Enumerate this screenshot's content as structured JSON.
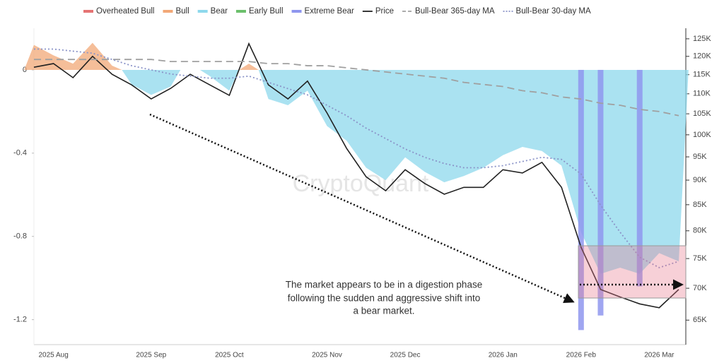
{
  "chart_data": {
    "type": "area",
    "categories": [
      null,
      "2025 Aug",
      null,
      null,
      null,
      null,
      "2025 Sep",
      null,
      null,
      null,
      "2025 Oct",
      null,
      null,
      null,
      null,
      "2025 Nov",
      null,
      null,
      null,
      "2025 Dec",
      null,
      null,
      null,
      null,
      "2026 Jan",
      null,
      null,
      null,
      "2026 Feb",
      null,
      null,
      null,
      "2026 Mar",
      null
    ],
    "series": [
      {
        "name": "Overheated Bull",
        "color": "#e57373",
        "mark": "area",
        "values": [
          null,
          null,
          null,
          null,
          null,
          null,
          null,
          null,
          null,
          null,
          null,
          null,
          null,
          null,
          null,
          null,
          null,
          null,
          null,
          null,
          null,
          null,
          null,
          null,
          null,
          null,
          null,
          null,
          null,
          null,
          null,
          null,
          null,
          null
        ]
      },
      {
        "name": "Bull",
        "color": "#f2a877",
        "mark": "area",
        "values": [
          0.12,
          0.07,
          0.03,
          0.13,
          0.02,
          null,
          null,
          null,
          0,
          null,
          null,
          0.03,
          null,
          null,
          null,
          null,
          null,
          null,
          null,
          null,
          null,
          null,
          null,
          null,
          null,
          null,
          null,
          null,
          null,
          null,
          null,
          null,
          null,
          null
        ]
      },
      {
        "name": "Bear",
        "color": "#8ed8ec",
        "mark": "area",
        "values": [
          null,
          null,
          null,
          null,
          null,
          -0.07,
          -0.12,
          -0.08,
          null,
          -0.03,
          -0.1,
          null,
          -0.14,
          -0.17,
          -0.1,
          -0.27,
          -0.34,
          -0.47,
          -0.53,
          -0.42,
          -0.49,
          -0.54,
          -0.51,
          -0.47,
          -0.41,
          -0.37,
          -0.39,
          -0.46,
          -0.78,
          -0.98,
          -0.95,
          -0.98,
          -0.88,
          -0.92
        ]
      },
      {
        "name": "Early Bull",
        "color": "#6cc06c",
        "mark": "area",
        "values": [
          null,
          null,
          null,
          null,
          null,
          null,
          null,
          null,
          null,
          null,
          null,
          null,
          null,
          null,
          null,
          null,
          null,
          null,
          null,
          null,
          null,
          null,
          null,
          null,
          null,
          null,
          null,
          null,
          null,
          null,
          null,
          null,
          null,
          null
        ]
      },
      {
        "name": "Extreme Bear",
        "color": "#8f96ee",
        "mark": "band",
        "values": [
          null,
          null,
          null,
          null,
          null,
          null,
          null,
          null,
          null,
          null,
          null,
          null,
          null,
          null,
          null,
          null,
          null,
          null,
          null,
          null,
          null,
          null,
          null,
          null,
          null,
          null,
          null,
          null,
          -1.25,
          -1.18,
          null,
          -1.04,
          null,
          null
        ]
      },
      {
        "name": "Price",
        "color": "#222222",
        "mark": "line",
        "axis": "y2",
        "values": [
          117000,
          118000,
          114200,
          120000,
          115100,
          112300,
          108700,
          111400,
          115100,
          112300,
          109600,
          123600,
          112300,
          108700,
          113300,
          105200,
          96900,
          90700,
          87800,
          92200,
          89300,
          87100,
          88500,
          88500,
          92200,
          91500,
          93800,
          88500,
          77000,
          69800,
          68600,
          67500,
          66900,
          69800
        ]
      },
      {
        "name": "Bull-Bear 365-day MA",
        "color": "#a0a0a0",
        "mark": "line",
        "dash": "dashed",
        "values": [
          0.05,
          0.05,
          0.05,
          0.05,
          0.05,
          0.05,
          0.05,
          0.04,
          0.04,
          0.04,
          0.04,
          0.04,
          0.03,
          0.03,
          0.02,
          0.02,
          0.01,
          0,
          -0.01,
          -0.02,
          -0.03,
          -0.04,
          -0.06,
          -0.07,
          -0.08,
          -0.1,
          -0.11,
          -0.13,
          -0.14,
          -0.16,
          -0.17,
          -0.19,
          -0.2,
          -0.22
        ]
      },
      {
        "name": "Bull-Bear 30-day MA",
        "color": "#8a93c8",
        "mark": "line",
        "dash": "dotted",
        "values": [
          0.1,
          0.1,
          0.09,
          0.08,
          0.05,
          0.02,
          0,
          -0.02,
          -0.03,
          -0.04,
          -0.04,
          -0.03,
          -0.06,
          -0.09,
          -0.12,
          -0.17,
          -0.22,
          -0.28,
          -0.33,
          -0.38,
          -0.42,
          -0.45,
          -0.47,
          -0.47,
          -0.46,
          -0.44,
          -0.42,
          -0.43,
          -0.5,
          -0.65,
          -0.78,
          -0.9,
          -0.95,
          -0.92
        ]
      }
    ],
    "ylim": [
      0.2,
      -1.32
    ],
    "yticks": [
      0,
      -0.4,
      -0.8,
      -1.2
    ],
    "grid": false,
    "y2lim": [
      61400,
      128100
    ],
    "y2scale": "log",
    "y2ticks": [
      {
        "value": 65000,
        "label": "65K"
      },
      {
        "value": 70000,
        "label": "70K"
      },
      {
        "value": 75000,
        "label": "75K"
      },
      {
        "value": 80000,
        "label": "80K"
      },
      {
        "value": 85000,
        "label": "85K"
      },
      {
        "value": 90000,
        "label": "90K"
      },
      {
        "value": 95000,
        "label": "95K"
      },
      {
        "value": 100000,
        "label": "100K"
      },
      {
        "value": 105000,
        "label": "105K"
      },
      {
        "value": 110000,
        "label": "110K"
      },
      {
        "value": 115000,
        "label": "115K"
      },
      {
        "value": 120000,
        "label": "120K"
      },
      {
        "value": 125000,
        "label": "125K"
      }
    ],
    "legend": "top",
    "watermark": "CryptoQuant",
    "annotation": [
      "The market appears to be in a digestion phase",
      "following the sudden and aggressive shift into",
      "a bear market."
    ]
  }
}
